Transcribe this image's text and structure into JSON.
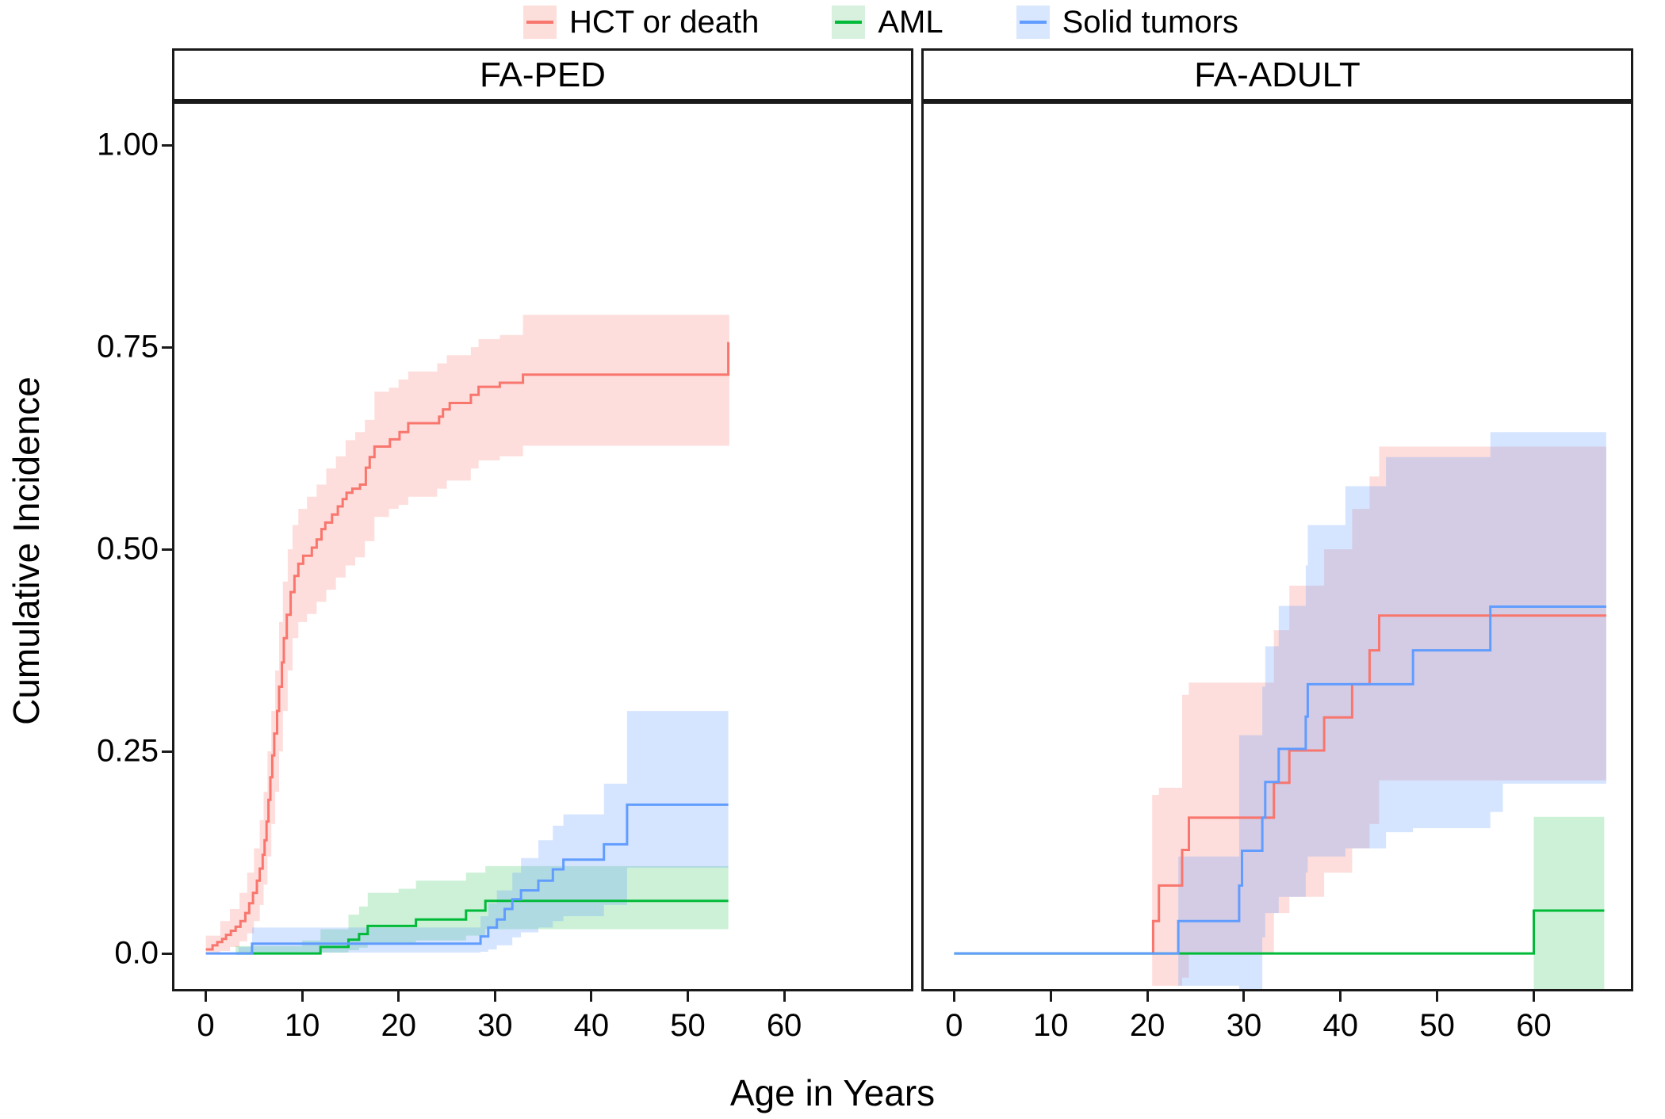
{
  "legend": {
    "items": [
      {
        "label": "HCT or death"
      },
      {
        "label": "AML"
      },
      {
        "label": "Solid tumors"
      }
    ]
  },
  "axes": {
    "x_title": "Age in Years",
    "y_title": "Cumulative Incidence",
    "x_tick_labels": [
      "0",
      "10",
      "20",
      "30",
      "40",
      "50",
      "60"
    ],
    "x_tick_values": [
      0,
      10,
      20,
      30,
      40,
      50,
      60
    ],
    "y_tick_labels": [
      "0.0",
      "0.25",
      "0.50",
      "0.75",
      "1.00"
    ],
    "y_tick_values": [
      0,
      0.25,
      0.5,
      0.75,
      1.0
    ]
  },
  "chart_data": {
    "type": "line",
    "subtype": "cumulative-incidence-step-curves-with-confidence-bands",
    "title": "",
    "xlabel": "Age in Years",
    "ylabel": "Cumulative Incidence",
    "ylim": [
      -0.047,
      1.054
    ],
    "grid": false,
    "legend_position": "top",
    "legend_entries": [
      "HCT or death",
      "AML",
      "Solid tumors"
    ],
    "series_styles": [
      {
        "name": "HCT or death",
        "line_color": "#f8766d",
        "band_fill": "#f8766d",
        "band_opacity": 0.24,
        "key_fill": "#fcdeda"
      },
      {
        "name": "AML",
        "line_color": "#00ba38",
        "band_fill": "#00ba38",
        "band_opacity": 0.2,
        "key_fill": "#d7f1de"
      },
      {
        "name": "Solid tumors",
        "line_color": "#619cff",
        "band_fill": "#619cff",
        "band_opacity": 0.26,
        "key_fill": "#d8e7fd"
      }
    ],
    "panels": [
      {
        "label": "FA-PED",
        "xlim": [
          -3.5,
          73.4
        ],
        "series": [
          {
            "name": "HCT or death",
            "end_age": 54.3,
            "line": [
              [
                0,
                0.005
              ],
              [
                0.7,
                0.01
              ],
              [
                1.2,
                0.014
              ],
              [
                1.7,
                0.018
              ],
              [
                2.1,
                0.023
              ],
              [
                2.6,
                0.028
              ],
              [
                3.1,
                0.033
              ],
              [
                3.6,
                0.04
              ],
              [
                4.1,
                0.05
              ],
              [
                4.5,
                0.062
              ],
              [
                4.9,
                0.075
              ],
              [
                5.3,
                0.09
              ],
              [
                5.6,
                0.105
              ],
              [
                5.9,
                0.122
              ],
              [
                6.1,
                0.14
              ],
              [
                6.3,
                0.163
              ],
              [
                6.5,
                0.19
              ],
              [
                6.7,
                0.218
              ],
              [
                6.9,
                0.245
              ],
              [
                7.1,
                0.272
              ],
              [
                7.4,
                0.3
              ],
              [
                7.6,
                0.33
              ],
              [
                7.9,
                0.36
              ],
              [
                8.1,
                0.39
              ],
              [
                8.4,
                0.419
              ],
              [
                8.8,
                0.447
              ],
              [
                9.2,
                0.467
              ],
              [
                9.6,
                0.482
              ],
              [
                10.1,
                0.492
              ],
              [
                11,
                0.502
              ],
              [
                11.5,
                0.512
              ],
              [
                12,
                0.525
              ],
              [
                12.4,
                0.533
              ],
              [
                13.1,
                0.543
              ],
              [
                13.7,
                0.553
              ],
              [
                14.2,
                0.562
              ],
              [
                14.6,
                0.57
              ],
              [
                15.2,
                0.575
              ],
              [
                16,
                0.58
              ],
              [
                16.6,
                0.601
              ],
              [
                17,
                0.614
              ],
              [
                17.5,
                0.627
              ],
              [
                19.1,
                0.636
              ],
              [
                20.1,
                0.645
              ],
              [
                21,
                0.656
              ],
              [
                24.2,
                0.664
              ],
              [
                24.6,
                0.673
              ],
              [
                25.3,
                0.681
              ],
              [
                27.5,
                0.691
              ],
              [
                28.3,
                0.701
              ],
              [
                30.5,
                0.706
              ],
              [
                32.9,
                0.716
              ],
              [
                54.2,
                0.755
              ]
            ],
            "band": [
              [
                0,
                0,
                0.022
              ],
              [
                1.5,
                0.003,
                0.04
              ],
              [
                2.5,
                0.008,
                0.055
              ],
              [
                3.5,
                0.015,
                0.075
              ],
              [
                4.3,
                0.025,
                0.1
              ],
              [
                5,
                0.04,
                0.13
              ],
              [
                5.6,
                0.06,
                0.165
              ],
              [
                6,
                0.085,
                0.2
              ],
              [
                6.4,
                0.12,
                0.25
              ],
              [
                6.8,
                0.16,
                0.3
              ],
              [
                7.2,
                0.2,
                0.35
              ],
              [
                7.6,
                0.25,
                0.41
              ],
              [
                8,
                0.3,
                0.46
              ],
              [
                8.5,
                0.35,
                0.5
              ],
              [
                9,
                0.39,
                0.53
              ],
              [
                9.6,
                0.41,
                0.55
              ],
              [
                10.5,
                0.42,
                0.565
              ],
              [
                11.5,
                0.435,
                0.58
              ],
              [
                12.5,
                0.45,
                0.6
              ],
              [
                13.5,
                0.465,
                0.615
              ],
              [
                14.5,
                0.48,
                0.635
              ],
              [
                15.5,
                0.49,
                0.645
              ],
              [
                16.5,
                0.51,
                0.66
              ],
              [
                17.5,
                0.54,
                0.695
              ],
              [
                19,
                0.55,
                0.7
              ],
              [
                20,
                0.555,
                0.71
              ],
              [
                21,
                0.565,
                0.72
              ],
              [
                24,
                0.575,
                0.73
              ],
              [
                25,
                0.585,
                0.74
              ],
              [
                27.5,
                0.6,
                0.75
              ],
              [
                28.3,
                0.61,
                0.76
              ],
              [
                30.5,
                0.615,
                0.765
              ],
              [
                32.9,
                0.628,
                0.79
              ],
              [
                54.2,
                0.628,
                0.79
              ]
            ]
          },
          {
            "name": "AML",
            "end_age": 54.2,
            "line": [
              [
                3.1,
                0
              ],
              [
                11.9,
                0.008
              ],
              [
                14.8,
                0.017
              ],
              [
                15.9,
                0.024
              ],
              [
                16.8,
                0.034
              ],
              [
                21.8,
                0.042
              ],
              [
                27,
                0.053
              ],
              [
                29,
                0.065
              ],
              [
                54.1,
                0.065
              ]
            ],
            "band": [
              [
                3.1,
                0,
                0.009
              ],
              [
                10,
                0,
                0.016
              ],
              [
                11.9,
                0.001,
                0.03
              ],
              [
                14.8,
                0.004,
                0.048
              ],
              [
                15.9,
                0.007,
                0.058
              ],
              [
                16.8,
                0.012,
                0.075
              ],
              [
                20,
                0.013,
                0.08
              ],
              [
                21.8,
                0.016,
                0.09
              ],
              [
                27,
                0.022,
                0.1
              ],
              [
                29,
                0.03,
                0.108
              ],
              [
                54.1,
                0.03,
                0.108
              ]
            ]
          },
          {
            "name": "Solid tumors",
            "end_age": 54.2,
            "line": [
              [
                0,
                0
              ],
              [
                4.8,
                0.012
              ],
              [
                28.5,
                0.021
              ],
              [
                29.3,
                0.032
              ],
              [
                30.2,
                0.042
              ],
              [
                31,
                0.055
              ],
              [
                31.8,
                0.067
              ],
              [
                32.7,
                0.078
              ],
              [
                34.5,
                0.09
              ],
              [
                36,
                0.104
              ],
              [
                37.1,
                0.116
              ],
              [
                41.3,
                0.135
              ],
              [
                43.7,
                0.184
              ],
              [
                54.1,
                0.184
              ]
            ],
            "band": [
              [
                3.4,
                0,
                0.008
              ],
              [
                4.8,
                0.001,
                0.032
              ],
              [
                28.5,
                0.002,
                0.046
              ],
              [
                29.3,
                0.005,
                0.062
              ],
              [
                30.2,
                0.01,
                0.078
              ],
              [
                31.8,
                0.02,
                0.1
              ],
              [
                32.7,
                0.026,
                0.118
              ],
              [
                34.5,
                0.032,
                0.14
              ],
              [
                36,
                0.04,
                0.158
              ],
              [
                37.1,
                0.046,
                0.172
              ],
              [
                41.3,
                0.06,
                0.21
              ],
              [
                43.7,
                0.106,
                0.3
              ],
              [
                54.1,
                0.106,
                0.3
              ]
            ]
          }
        ]
      },
      {
        "label": "FA-ADULT",
        "xlim": [
          -3.4,
          70.3
        ],
        "series": [
          {
            "name": "HCT or death",
            "end_age": 67.5,
            "line": [
              [
                20.5,
                0
              ],
              [
                20.6,
                0.04
              ],
              [
                21.2,
                0.084
              ],
              [
                23.6,
                0.128
              ],
              [
                24.3,
                0.168
              ],
              [
                33.1,
                0.211
              ],
              [
                34.7,
                0.251
              ],
              [
                38.3,
                0.292
              ],
              [
                41.2,
                0.333
              ],
              [
                43,
                0.375
              ],
              [
                44,
                0.418
              ],
              [
                67.5,
                0.418
              ]
            ],
            "band": [
              [
                20.5,
                -0.04,
                0.196
              ],
              [
                21.2,
                -0.04,
                0.205
              ],
              [
                23.6,
                -0.03,
                0.32
              ],
              [
                24.3,
                0,
                0.335
              ],
              [
                33.1,
                0.05,
                0.4
              ],
              [
                34.7,
                0.07,
                0.455
              ],
              [
                38.3,
                0.1,
                0.5
              ],
              [
                41.2,
                0.13,
                0.55
              ],
              [
                43,
                0.16,
                0.59
              ],
              [
                44,
                0.214,
                0.627
              ],
              [
                67.5,
                0.214,
                0.627
              ]
            ]
          },
          {
            "name": "AML",
            "end_age": 67.3,
            "line": [
              [
                0,
                0
              ],
              [
                60,
                0.053
              ],
              [
                67.3,
                0.053
              ]
            ],
            "band": [
              [
                60,
                -0.045,
                0.169
              ],
              [
                67.3,
                -0.045,
                0.169
              ]
            ]
          },
          {
            "name": "Solid tumors",
            "end_age": 67.5,
            "line": [
              [
                0,
                0
              ],
              [
                23.2,
                0.04
              ],
              [
                29.5,
                0.084
              ],
              [
                29.8,
                0.127
              ],
              [
                31.9,
                0.168
              ],
              [
                32.2,
                0.212
              ],
              [
                33.6,
                0.253
              ],
              [
                36.4,
                0.293
              ],
              [
                36.6,
                0.333
              ],
              [
                47.5,
                0.375
              ],
              [
                55.5,
                0.429
              ],
              [
                67.5,
                0.429
              ]
            ],
            "band": [
              [
                23.2,
                -0.04,
                0.12
              ],
              [
                29.5,
                -0.045,
                0.27
              ],
              [
                31.9,
                0.02,
                0.33
              ],
              [
                32.2,
                0.05,
                0.38
              ],
              [
                33.6,
                0.07,
                0.43
              ],
              [
                36.4,
                0.1,
                0.48
              ],
              [
                36.6,
                0.12,
                0.53
              ],
              [
                40.5,
                0.13,
                0.578
              ],
              [
                44.7,
                0.15,
                0.614
              ],
              [
                47.5,
                0.155,
                0.614
              ],
              [
                55.5,
                0.175,
                0.645
              ],
              [
                56.8,
                0.21,
                0.645
              ],
              [
                67.5,
                0.21,
                0.645
              ]
            ]
          }
        ]
      }
    ]
  }
}
